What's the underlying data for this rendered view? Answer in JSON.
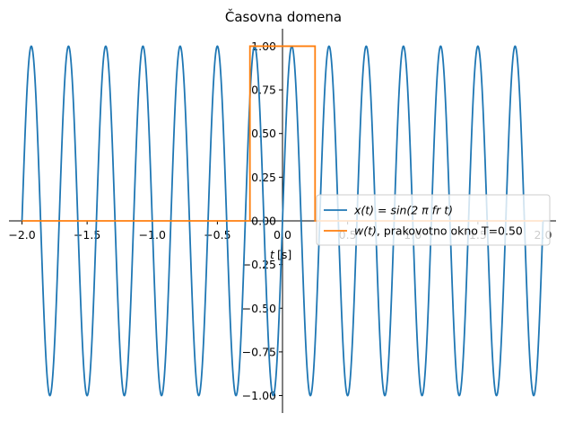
{
  "chart_data": {
    "type": "line",
    "title": "Časovna domena",
    "xlabel_var": "t",
    "xlabel_unit": " [s]",
    "xlim": [
      -2.1,
      2.1
    ],
    "ylim": [
      -1.1,
      1.1
    ],
    "xticks": [
      -2.0,
      -1.5,
      -1.0,
      -0.5,
      0.0,
      0.5,
      1.0,
      1.5,
      2.0
    ],
    "xtick_labels": [
      "−2.0",
      "−1.5",
      "−1.0",
      "−0.5",
      "0.0",
      "0.5",
      "1.0",
      "1.5",
      "2.0"
    ],
    "yticks": [
      -1.0,
      -0.75,
      -0.5,
      -0.25,
      0.0,
      0.25,
      0.5,
      0.75,
      1.0
    ],
    "ytick_labels": [
      "−1.00",
      "−0.75",
      "−0.50",
      "−0.25",
      "0.00",
      "0.25",
      "0.50",
      "0.75",
      "1.00"
    ],
    "grid": false,
    "legend_position": "right",
    "series": [
      {
        "name": "x(t) = sin(2πfr t)",
        "legend_math": "x(t) = sin(2 π fr t)",
        "color": "#1f77b4",
        "function": "sine",
        "amplitude": 1.0,
        "frequency_hz": 3.5,
        "x_range": [
          -2.0,
          2.0
        ]
      },
      {
        "name": "w(t), prakovotno okno T=0.50",
        "legend_math": "w(t)",
        "legend_suffix": ", prakovotno okno T=0.50",
        "color": "#ff7f0e",
        "function": "rect",
        "window_T": 0.5,
        "x": [
          -2.0,
          -0.25,
          -0.25,
          0.25,
          0.25,
          2.0
        ],
        "y": [
          0.0,
          0.0,
          1.0,
          1.0,
          0.0,
          0.0
        ]
      }
    ]
  }
}
